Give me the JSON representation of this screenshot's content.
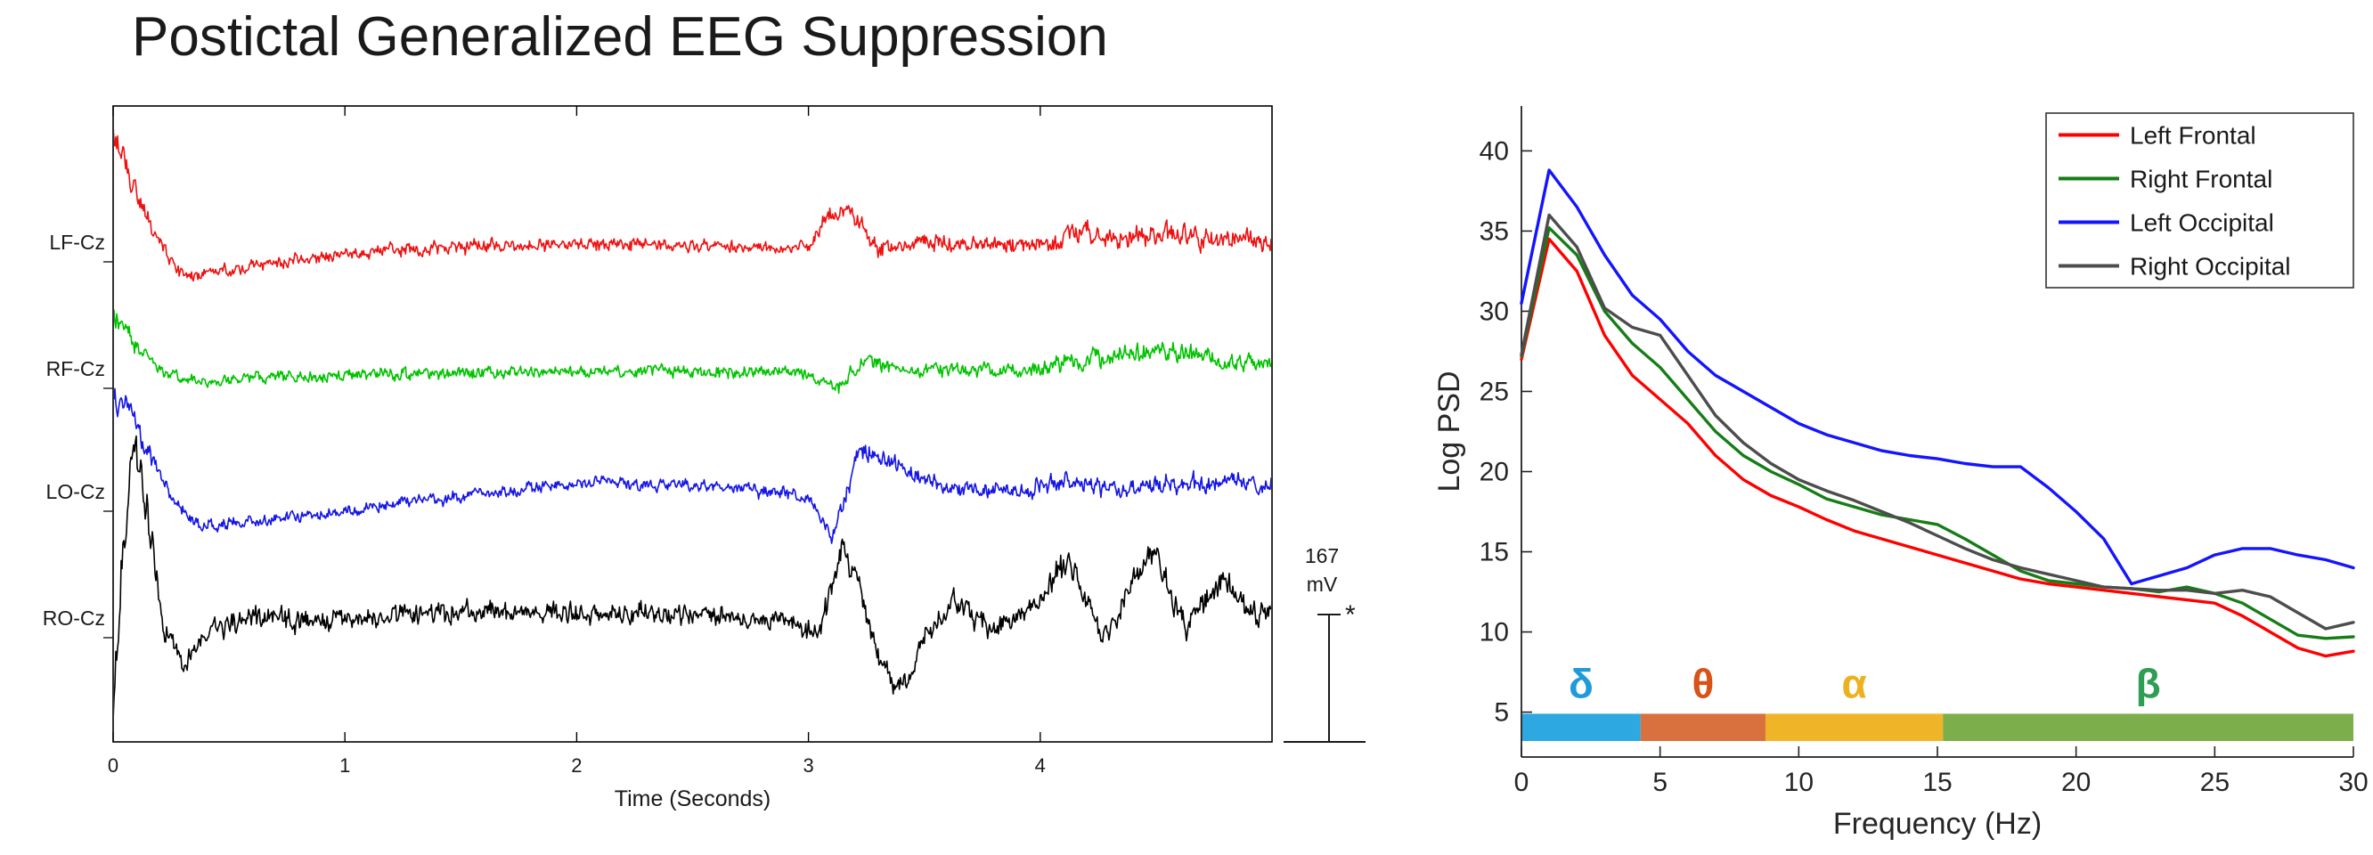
{
  "title": "Postictal Generalized EEG Suppression",
  "chart_data": [
    {
      "type": "line",
      "id": "eeg-traces",
      "description": "Four EEG channel time series showing postictal generalized EEG suppression: high-amplitude activity at onset, flat suppression period, burst near 3.2 s, gradual return of activity after 4 s",
      "xlabel": "Time (Seconds)",
      "xlim": [
        0,
        5
      ],
      "x_ticks": [
        0,
        1,
        2,
        3,
        4
      ],
      "scale_bar": {
        "value": "167",
        "unit": "mV",
        "marker": "*"
      },
      "channels": [
        {
          "label": "LF-Cz",
          "color": "#ee1111",
          "envelope_keypoints": [
            [
              0,
              -130,
              28
            ],
            [
              0.05,
              -90,
              24
            ],
            [
              0.12,
              -40,
              16
            ],
            [
              0.2,
              0,
              12
            ],
            [
              0.3,
              38,
              9
            ],
            [
              0.5,
              32,
              9
            ],
            [
              0.8,
              18,
              10
            ],
            [
              1.2,
              8,
              10
            ],
            [
              1.6,
              4,
              11
            ],
            [
              2.0,
              2,
              10
            ],
            [
              2.5,
              4,
              9
            ],
            [
              3.0,
              6,
              9
            ],
            [
              3.08,
              -30,
              12
            ],
            [
              3.18,
              -38,
              12
            ],
            [
              3.3,
              12,
              16
            ],
            [
              3.45,
              0,
              12
            ],
            [
              3.8,
              4,
              11
            ],
            [
              4.05,
              2,
              13
            ],
            [
              4.15,
              -12,
              18
            ],
            [
              4.35,
              -2,
              16
            ],
            [
              4.55,
              -10,
              18
            ],
            [
              4.75,
              -4,
              16
            ],
            [
              5,
              -2,
              15
            ]
          ]
        },
        {
          "label": "RF-Cz",
          "color": "#00c300",
          "envelope_keypoints": [
            [
              0,
              -58,
              18
            ],
            [
              0.08,
              -30,
              14
            ],
            [
              0.2,
              0,
              10
            ],
            [
              0.35,
              14,
              9
            ],
            [
              0.7,
              10,
              9
            ],
            [
              1.2,
              6,
              9
            ],
            [
              2.0,
              4,
              9
            ],
            [
              2.6,
              4,
              9
            ],
            [
              3.0,
              4,
              9
            ],
            [
              3.12,
              22,
              12
            ],
            [
              3.25,
              -8,
              12
            ],
            [
              3.4,
              2,
              10
            ],
            [
              3.9,
              2,
              11
            ],
            [
              4.1,
              -6,
              14
            ],
            [
              4.35,
              -16,
              15
            ],
            [
              4.6,
              -20,
              15
            ],
            [
              4.8,
              -8,
              13
            ],
            [
              5,
              -4,
              12
            ]
          ]
        },
        {
          "label": "LO-Cz",
          "color": "#1515e6",
          "envelope_keypoints": [
            [
              0,
              -92,
              22
            ],
            [
              0.06,
              -100,
              20
            ],
            [
              0.15,
              -45,
              16
            ],
            [
              0.25,
              5,
              12
            ],
            [
              0.38,
              38,
              10
            ],
            [
              0.7,
              30,
              9
            ],
            [
              1.1,
              18,
              9
            ],
            [
              1.6,
              2,
              9
            ],
            [
              2.1,
              -10,
              9
            ],
            [
              2.5,
              -6,
              9
            ],
            [
              2.9,
              2,
              9
            ],
            [
              3.02,
              10,
              10
            ],
            [
              3.1,
              58,
              12
            ],
            [
              3.22,
              -48,
              16
            ],
            [
              3.38,
              -28,
              14
            ],
            [
              3.6,
              -4,
              11
            ],
            [
              3.9,
              0,
              11
            ],
            [
              4.1,
              -14,
              15
            ],
            [
              4.3,
              -2,
              13
            ],
            [
              4.55,
              -8,
              15
            ],
            [
              4.8,
              -12,
              14
            ],
            [
              5,
              -6,
              13
            ]
          ]
        },
        {
          "label": "RO-Cz",
          "color": "#000000",
          "envelope_keypoints": [
            [
              0,
              115,
              25
            ],
            [
              0.04,
              -60,
              45
            ],
            [
              0.09,
              -195,
              30
            ],
            [
              0.15,
              -120,
              30
            ],
            [
              0.22,
              10,
              25
            ],
            [
              0.3,
              55,
              18
            ],
            [
              0.4,
              15,
              16
            ],
            [
              0.55,
              0,
              18
            ],
            [
              0.9,
              2,
              17
            ],
            [
              1.4,
              -4,
              17
            ],
            [
              1.9,
              -8,
              16
            ],
            [
              2.4,
              -4,
              16
            ],
            [
              2.9,
              0,
              15
            ],
            [
              3.05,
              20,
              16
            ],
            [
              3.15,
              -85,
              22
            ],
            [
              3.27,
              15,
              22
            ],
            [
              3.38,
              88,
              20
            ],
            [
              3.5,
              25,
              18
            ],
            [
              3.62,
              -18,
              18
            ],
            [
              3.78,
              8,
              17
            ],
            [
              3.95,
              -8,
              17
            ],
            [
              4.12,
              -62,
              20
            ],
            [
              4.28,
              22,
              18
            ],
            [
              4.48,
              -78,
              20
            ],
            [
              4.63,
              12,
              18
            ],
            [
              4.78,
              -45,
              18
            ],
            [
              4.9,
              -5,
              17
            ],
            [
              5,
              -8,
              17
            ]
          ]
        }
      ]
    },
    {
      "type": "line",
      "id": "psd-spectrum",
      "xlabel": "Frequency (Hz)",
      "ylabel": "Log PSD",
      "xlim": [
        0,
        30
      ],
      "ylim": [
        2.2,
        42.8
      ],
      "x_ticks": [
        0,
        5,
        10,
        15,
        20,
        25,
        30
      ],
      "y_ticks": [
        5,
        10,
        15,
        20,
        25,
        30,
        35,
        40
      ],
      "legend_position": "top-right",
      "x": [
        0,
        1,
        2,
        3,
        4,
        5,
        6,
        7,
        8,
        9,
        10,
        11,
        12,
        13,
        14,
        15,
        16,
        17,
        18,
        19,
        20,
        21,
        22,
        23,
        24,
        25,
        26,
        27,
        28,
        29,
        30
      ],
      "series": [
        {
          "name": "Left Frontal",
          "color": "#ff0000",
          "values": [
            27.0,
            34.5,
            32.5,
            28.5,
            26.0,
            24.5,
            23.0,
            21.0,
            19.5,
            18.5,
            17.8,
            17.0,
            16.3,
            15.8,
            15.3,
            14.8,
            14.3,
            13.8,
            13.3,
            13.0,
            12.8,
            12.6,
            12.4,
            12.2,
            12.0,
            11.8,
            11.0,
            10.0,
            9.0,
            8.5,
            8.8
          ]
        },
        {
          "name": "Right Frontal",
          "color": "#167d16",
          "values": [
            27.2,
            35.2,
            33.5,
            30.0,
            28.0,
            26.5,
            24.5,
            22.5,
            21.0,
            20.0,
            19.2,
            18.3,
            17.8,
            17.3,
            17.0,
            16.7,
            15.8,
            14.8,
            13.8,
            13.2,
            13.0,
            12.8,
            12.7,
            12.5,
            12.8,
            12.4,
            11.8,
            10.8,
            9.8,
            9.6,
            9.7
          ]
        },
        {
          "name": "Left Occipital",
          "color": "#1414ff",
          "values": [
            30.5,
            38.8,
            36.5,
            33.5,
            31.0,
            29.5,
            27.5,
            26.0,
            25.0,
            24.0,
            23.0,
            22.3,
            21.8,
            21.3,
            21.0,
            20.8,
            20.5,
            20.3,
            20.3,
            19.0,
            17.5,
            15.8,
            13.0,
            13.5,
            14.0,
            14.8,
            15.2,
            15.2,
            14.8,
            14.5,
            14.0
          ]
        },
        {
          "name": "Right Occipital",
          "color": "#4d4d4d",
          "values": [
            27.3,
            36.0,
            34.0,
            30.2,
            29.0,
            28.5,
            26.0,
            23.5,
            21.8,
            20.5,
            19.5,
            18.8,
            18.2,
            17.5,
            16.8,
            16.0,
            15.2,
            14.5,
            14.0,
            13.6,
            13.2,
            12.8,
            12.7,
            12.6,
            12.6,
            12.4,
            12.6,
            12.2,
            11.2,
            10.2,
            10.6
          ]
        }
      ],
      "bands": [
        {
          "label": "δ",
          "range": [
            0,
            4.3
          ],
          "bar_color": "#2ea8e0",
          "text_color": "#1f9cd8"
        },
        {
          "label": "θ",
          "range": [
            4.3,
            8.8
          ],
          "bar_color": "#d9713e",
          "text_color": "#d95319"
        },
        {
          "label": "α",
          "range": [
            8.8,
            15.2
          ],
          "bar_color": "#f0b428",
          "text_color": "#edb120"
        },
        {
          "label": "β",
          "range": [
            15.2,
            30
          ],
          "bar_color": "#7cae4c",
          "text_color": "#2e9e54"
        }
      ]
    }
  ]
}
